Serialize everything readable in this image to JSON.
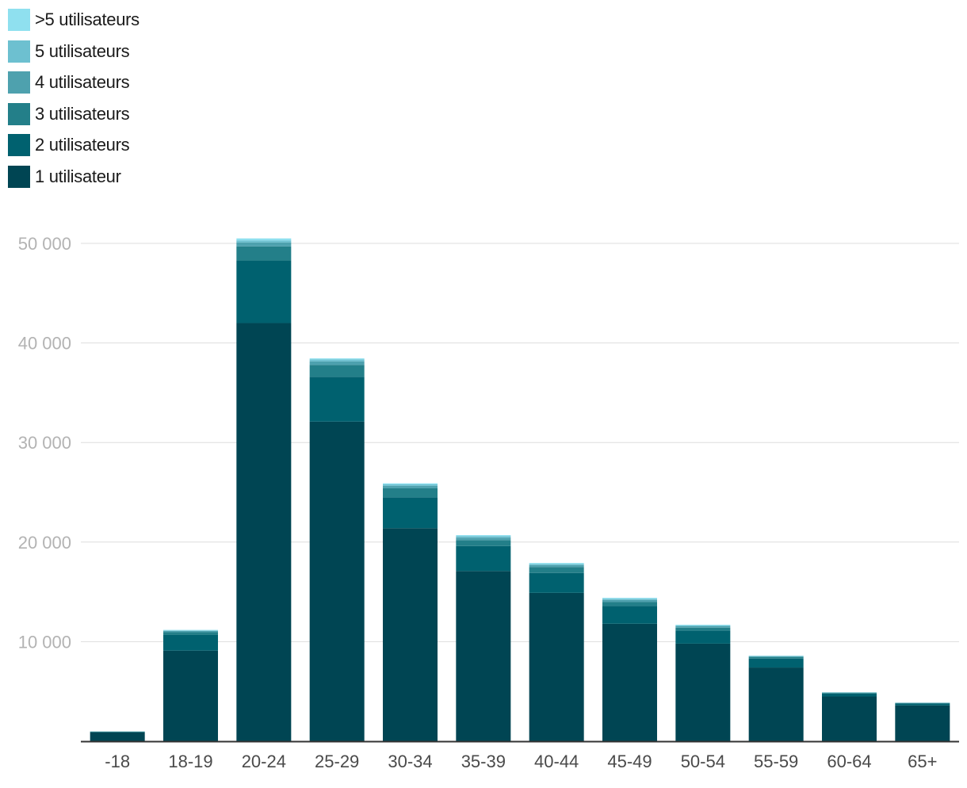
{
  "chart_data": {
    "type": "bar",
    "stacked": true,
    "title": "",
    "xlabel": "",
    "ylabel": "",
    "categories": [
      "-18",
      "18-19",
      "20-24",
      "25-29",
      "30-34",
      "35-39",
      "40-44",
      "45-49",
      "50-54",
      "55-59",
      "60-64",
      "65+"
    ],
    "series": [
      {
        "name": "1 utilisateur",
        "color": "#004553",
        "values": [
          900,
          9100,
          42000,
          32100,
          21400,
          17100,
          14900,
          11800,
          9800,
          7400,
          4500,
          3600
        ]
      },
      {
        "name": "2 utilisateurs",
        "color": "#00616f",
        "values": [
          50,
          1600,
          6300,
          4500,
          3100,
          2500,
          2000,
          1800,
          1300,
          900,
          300,
          200
        ]
      },
      {
        "name": "3 utilisateurs",
        "color": "#237f89",
        "values": [
          20,
          250,
          1400,
          1200,
          900,
          600,
          600,
          400,
          300,
          150,
          50,
          40
        ]
      },
      {
        "name": "4 utilisateurs",
        "color": "#4ea1ae",
        "values": [
          10,
          120,
          400,
          350,
          250,
          250,
          200,
          200,
          150,
          80,
          40,
          20
        ]
      },
      {
        "name": "5 utilisateurs",
        "color": "#6dc0d0",
        "values": [
          5,
          60,
          200,
          200,
          150,
          150,
          100,
          100,
          80,
          40,
          20,
          10
        ]
      },
      {
        "name": ">5 utilisateurs",
        "color": "#8fe0ef",
        "values": [
          5,
          50,
          200,
          100,
          100,
          100,
          100,
          100,
          70,
          30,
          10,
          10
        ]
      }
    ],
    "ylim": [
      0,
      50000
    ],
    "yticks": [
      10000,
      20000,
      30000,
      40000,
      50000
    ],
    "ytick_labels": [
      "10 000",
      "20 000",
      "30 000",
      "40 000",
      "50 000"
    ],
    "grid": true,
    "legend_position": "top-left"
  },
  "legend": {
    "items": [
      {
        "label": ">5 utilisateurs",
        "color": "#8fe0ef"
      },
      {
        "label": "5 utilisateurs",
        "color": "#6dc0d0"
      },
      {
        "label": "4 utilisateurs",
        "color": "#4ea1ae"
      },
      {
        "label": "3 utilisateurs",
        "color": "#237f89"
      },
      {
        "label": "2 utilisateurs",
        "color": "#00616f"
      },
      {
        "label": "1 utilisateur",
        "color": "#004553"
      }
    ]
  },
  "colors": {
    "axis": "#333333",
    "grid": "#dddddd",
    "tick_y": "#b3b3b3",
    "tick_x": "#4a4a4a"
  }
}
